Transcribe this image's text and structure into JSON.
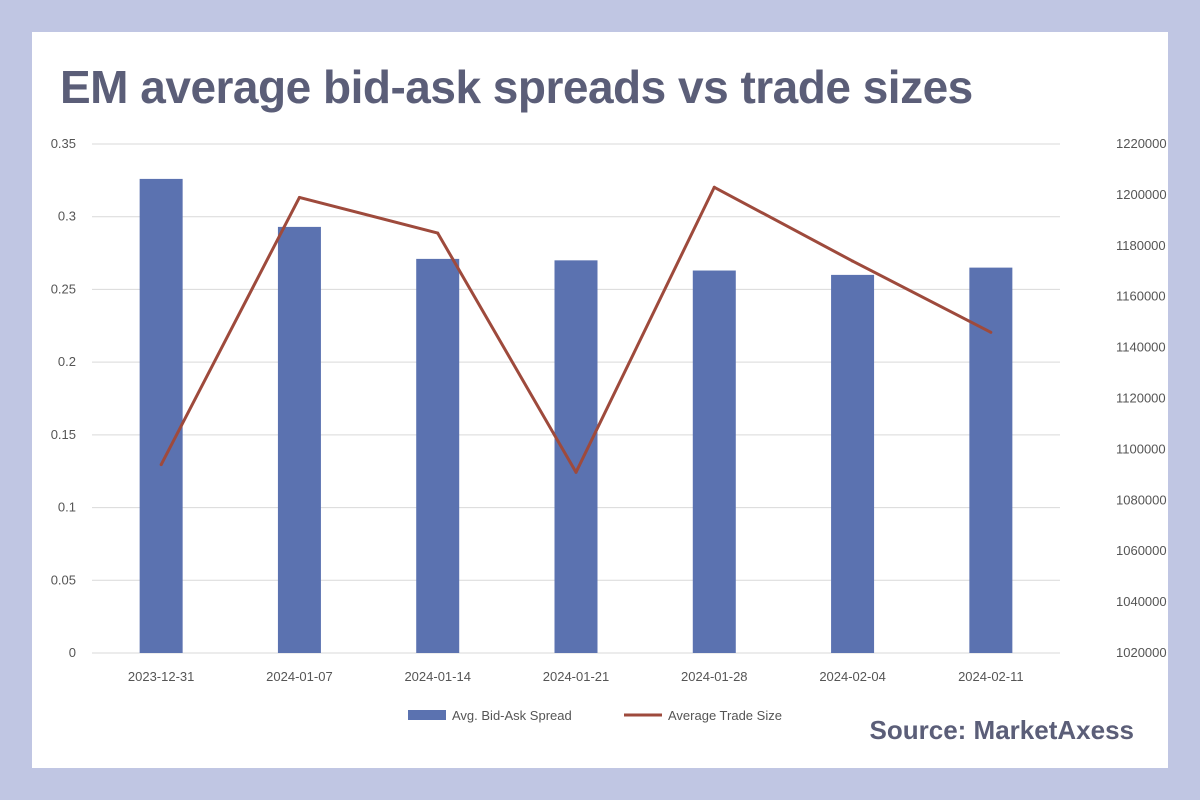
{
  "title": "EM average bid-ask spreads vs trade sizes",
  "source": "Source: MarketAxess",
  "chart_data": {
    "type": "bar",
    "title": "EM average bid-ask spreads vs trade sizes",
    "categories": [
      "2023-12-31",
      "2024-01-07",
      "2024-01-14",
      "2024-01-21",
      "2024-01-28",
      "2024-02-04",
      "2024-02-11"
    ],
    "series": [
      {
        "name": "Avg. Bid-Ask Spread",
        "type": "bar",
        "axis": "left",
        "color": "#5b72b0",
        "values": [
          0.326,
          0.293,
          0.271,
          0.27,
          0.263,
          0.26,
          0.265
        ]
      },
      {
        "name": "Average Trade Size",
        "type": "line",
        "axis": "right",
        "color": "#9e4a3c",
        "values": [
          1094000,
          1199000,
          1185000,
          1091000,
          1203000,
          1174000,
          1146000
        ]
      }
    ],
    "y_left": {
      "range": [
        0,
        0.35
      ],
      "ticks": [
        "0",
        "0.05",
        "0.1",
        "0.15",
        "0.2",
        "0.25",
        "0.3",
        "0.35"
      ]
    },
    "y_right": {
      "range": [
        1020000,
        1220000
      ],
      "ticks": [
        "1020000",
        "1040000",
        "1060000",
        "1080000",
        "1100000",
        "1120000",
        "1140000",
        "1160000",
        "1180000",
        "1200000",
        "1220000"
      ]
    },
    "grid": true,
    "legend": "bottom"
  }
}
